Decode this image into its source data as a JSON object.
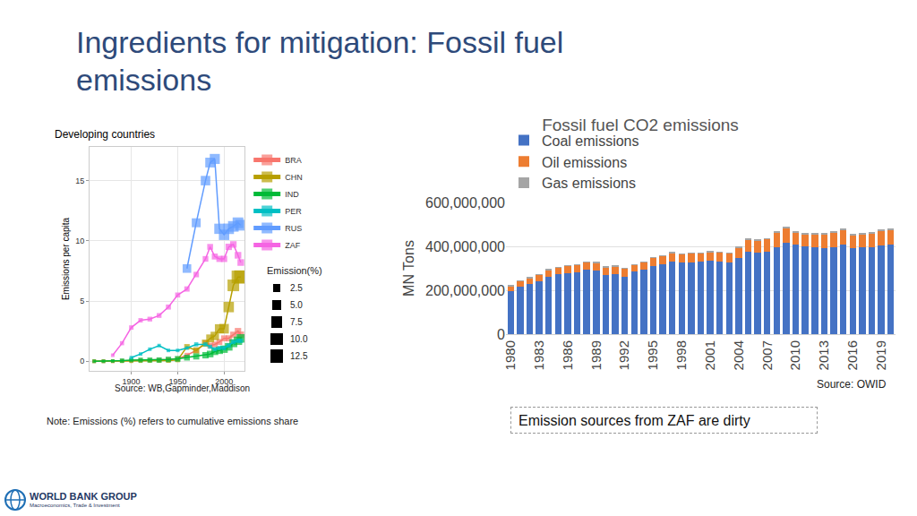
{
  "slide": {
    "title": "Ingredients for mitigation: Fossil fuel emissions",
    "note": "Note: Emissions (%) refers to cumulative emissions share",
    "callout": "Emission sources from ZAF are dirty",
    "logo": {
      "name": "WORLD BANK GROUP",
      "subtitle": "Macroeconomics, Trade & Investment"
    }
  },
  "chart_data": [
    {
      "type": "line",
      "title": "Developing countries",
      "y_label": "Emissions per capita",
      "source": "Source: WB,Gapminder,Maddison",
      "x": [
        1860,
        1870,
        1880,
        1890,
        1900,
        1910,
        1920,
        1930,
        1940,
        1950,
        1960,
        1970,
        1980,
        1985,
        1990,
        1995,
        2000,
        2005,
        2010,
        2015,
        2018
      ],
      "series": [
        {
          "name": "BRA",
          "color": "#F8766D",
          "values": [
            0,
            0,
            0,
            0.05,
            0.05,
            0.1,
            0.1,
            0.1,
            0.15,
            0.2,
            0.5,
            0.9,
            1.5,
            1.3,
            1.4,
            1.6,
            1.9,
            1.9,
            2.2,
            2.5,
            2.2
          ],
          "emission_share": [
            0,
            0,
            0,
            0,
            0,
            0,
            0,
            0.05,
            0.1,
            0.1,
            0.2,
            0.3,
            0.5,
            0.6,
            0.6,
            0.7,
            0.8,
            0.9,
            1.0,
            1.1,
            1.2
          ]
        },
        {
          "name": "CHN",
          "color": "#B79F00",
          "values": [
            0,
            0,
            0,
            0,
            0,
            0.01,
            0.02,
            0.03,
            0.05,
            0.1,
            1.2,
            0.9,
            1.5,
            1.9,
            2.1,
            2.7,
            2.7,
            4.5,
            6.3,
            7.0,
            7.0
          ],
          "emission_share": [
            0,
            0,
            0,
            0,
            0,
            0,
            0,
            0,
            0.1,
            0.1,
            0.5,
            1.0,
            1.8,
            2.5,
            3.2,
            4.2,
            5.0,
            6.5,
            9.0,
            11.5,
            12.8
          ]
        },
        {
          "name": "IND",
          "color": "#00BA38",
          "values": [
            0,
            0,
            0.02,
            0.05,
            0.1,
            0.1,
            0.1,
            0.1,
            0.15,
            0.2,
            0.3,
            0.4,
            0.5,
            0.6,
            0.8,
            0.9,
            1.0,
            1.2,
            1.5,
            1.7,
            1.9
          ],
          "emission_share": [
            0,
            0,
            0,
            0.1,
            0.1,
            0.2,
            0.3,
            0.4,
            0.5,
            0.6,
            0.7,
            0.9,
            1.1,
            1.3,
            1.5,
            1.8,
            2.0,
            2.3,
            2.7,
            3.1,
            3.3
          ]
        },
        {
          "name": "PER",
          "color": "#00BFC4",
          "values": [
            null,
            null,
            null,
            null,
            0.3,
            0.6,
            1.0,
            1.3,
            0.9,
            0.9,
            1.1,
            1.4,
            1.4,
            1.2,
            1.0,
            1.1,
            1.1,
            1.3,
            1.6,
            1.7,
            1.7
          ],
          "emission_share": [
            null,
            null,
            null,
            null,
            0,
            0,
            0,
            0,
            0,
            0,
            0,
            0.05,
            0.05,
            0.05,
            0.05,
            0.05,
            0.1,
            0.1,
            0.1,
            0.1,
            0.1
          ]
        },
        {
          "name": "RUS",
          "color": "#619CFF",
          "values": [
            null,
            null,
            null,
            null,
            null,
            null,
            null,
            null,
            null,
            null,
            7.7,
            11.5,
            15,
            16.5,
            16.8,
            11,
            10.5,
            11,
            11.2,
            11.5,
            11.3
          ],
          "emission_share": [
            null,
            null,
            null,
            null,
            null,
            null,
            null,
            null,
            null,
            null,
            3.5,
            4.0,
            4.8,
            5.3,
            5.8,
            6.2,
            6.4,
            6.6,
            6.8,
            7.0,
            7.1
          ]
        },
        {
          "name": "ZAF",
          "color": "#F564E3",
          "values": [
            null,
            null,
            0.5,
            1.5,
            2.8,
            3.4,
            3.5,
            3.8,
            4.5,
            5.5,
            6.0,
            7.2,
            8.5,
            9.5,
            8.7,
            8.5,
            8.5,
            9.5,
            9.7,
            8.8,
            8.2
          ],
          "emission_share": [
            null,
            null,
            0,
            0.05,
            0.1,
            0.1,
            0.2,
            0.2,
            0.3,
            0.3,
            0.4,
            0.5,
            0.6,
            0.7,
            0.8,
            0.9,
            1.0,
            1.1,
            1.2,
            1.3,
            1.3
          ]
        }
      ],
      "size_legend": {
        "title": "Emission(%)",
        "values": [
          2.5,
          {
            "value": 5,
            "label": "5.0"
          },
          7.5,
          {
            "value": 10,
            "label": "10.0"
          },
          12.5
        ]
      },
      "xlim": [
        1855,
        2022
      ],
      "xticks": [
        1900,
        1950,
        2000
      ],
      "ylim": [
        -0.8,
        17.8
      ],
      "yticks": [
        0,
        5,
        10,
        15
      ],
      "grid": true,
      "legend": "right",
      "marker": "square"
    },
    {
      "type": "bar",
      "title": "Fossil fuel CO2 emissions",
      "y_label": "MN Tons",
      "source": "Source: OWID",
      "categories": [
        "1980",
        null,
        null,
        "1983",
        null,
        null,
        "1986",
        null,
        null,
        "1989",
        null,
        null,
        "1992",
        null,
        null,
        "1995",
        null,
        null,
        "1998",
        null,
        null,
        "2001",
        null,
        null,
        "2004",
        null,
        null,
        "2007",
        null,
        null,
        "2010",
        null,
        null,
        "2013",
        null,
        null,
        "2016",
        null,
        null,
        "2019",
        null
      ],
      "series": [
        {
          "name": "Coal emissions",
          "color": "#4472C4",
          "values": [
            195000000,
            215000000,
            228000000,
            240000000,
            262000000,
            272000000,
            278000000,
            280000000,
            292000000,
            288000000,
            270000000,
            275000000,
            262000000,
            285000000,
            295000000,
            312000000,
            320000000,
            330000000,
            325000000,
            328000000,
            330000000,
            335000000,
            332000000,
            328000000,
            348000000,
            375000000,
            372000000,
            375000000,
            395000000,
            415000000,
            408000000,
            400000000,
            395000000,
            390000000,
            395000000,
            410000000,
            393000000,
            395000000,
            397000000,
            405000000,
            410000000
          ]
        },
        {
          "name": "Oil emissions",
          "color": "#ED7D31",
          "values": [
            25000000,
            27000000,
            28000000,
            30000000,
            30000000,
            32000000,
            33000000,
            35000000,
            36000000,
            38000000,
            35000000,
            35000000,
            38000000,
            30000000,
            32000000,
            35000000,
            37000000,
            40000000,
            40000000,
            40000000,
            38000000,
            40000000,
            40000000,
            40000000,
            45000000,
            55000000,
            55000000,
            58000000,
            70000000,
            70000000,
            55000000,
            55000000,
            60000000,
            65000000,
            70000000,
            65000000,
            60000000,
            60000000,
            62000000,
            65000000,
            65000000
          ]
        },
        {
          "name": "Gas emissions",
          "color": "#A5A5A5",
          "values": [
            2000000,
            2000000,
            2000000,
            2000000,
            2000000,
            2000000,
            2000000,
            2000000,
            2000000,
            2000000,
            2000000,
            2000000,
            2000000,
            2000000,
            2000000,
            2000000,
            2000000,
            2000000,
            2000000,
            2000000,
            3000000,
            3000000,
            3000000,
            3000000,
            3000000,
            3000000,
            3000000,
            3000000,
            3000000,
            3000000,
            3000000,
            3000000,
            3000000,
            3000000,
            4000000,
            4000000,
            4000000,
            4000000,
            4000000,
            4000000,
            4000000
          ]
        }
      ],
      "stacked": true,
      "ylim": [
        0,
        600000000
      ],
      "yticks": [
        0,
        {
          "value": 200000000,
          "label": "200,000,000"
        },
        {
          "value": 400000000,
          "label": "400,000,000"
        },
        {
          "value": 600000000,
          "label": "600,000,000"
        }
      ],
      "grid": true,
      "legend": "top"
    }
  ]
}
